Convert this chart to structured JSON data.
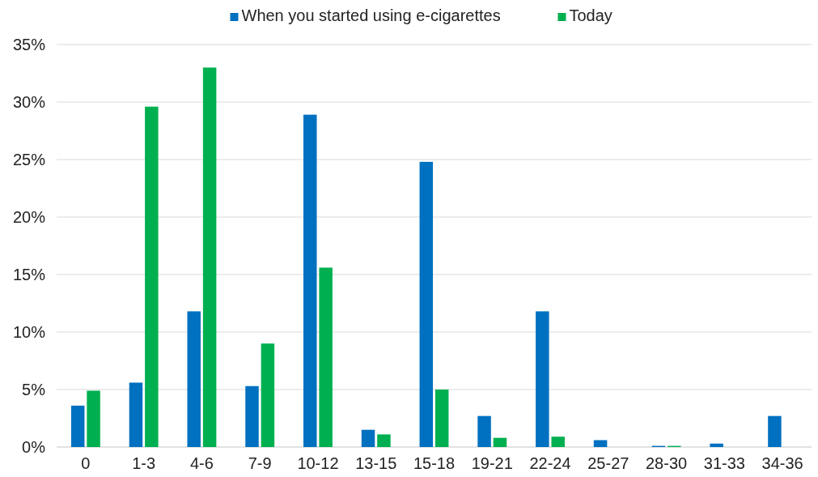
{
  "chart_data": {
    "type": "bar",
    "categories": [
      "0",
      "1-3",
      "4-6",
      "7-9",
      "10-12",
      "13-15",
      "15-18",
      "19-21",
      "22-24",
      "25-27",
      "28-30",
      "31-33",
      "34-36"
    ],
    "series": [
      {
        "name": "When you started using e-cigarettes",
        "color": "#0070c0",
        "values": [
          3.6,
          5.6,
          11.8,
          5.3,
          28.9,
          1.5,
          24.8,
          2.7,
          11.8,
          0.6,
          0.1,
          0.3,
          2.7
        ]
      },
      {
        "name": "Today",
        "color": "#00b050",
        "values": [
          4.9,
          29.6,
          33.0,
          9.0,
          15.6,
          1.1,
          5.0,
          0.8,
          0.9,
          0,
          0.1,
          0,
          0
        ]
      }
    ],
    "ylim": [
      0,
      35
    ],
    "yticks": [
      {
        "value": 0,
        "label": "0%"
      },
      {
        "value": 5,
        "label": "5%"
      },
      {
        "value": 10,
        "label": "10%"
      },
      {
        "value": 15,
        "label": "15%"
      },
      {
        "value": 20,
        "label": "20%"
      },
      {
        "value": 25,
        "label": "25%"
      },
      {
        "value": 30,
        "label": "30%"
      },
      {
        "value": 35,
        "label": "35%"
      }
    ],
    "grid": "y",
    "legend": "top"
  }
}
